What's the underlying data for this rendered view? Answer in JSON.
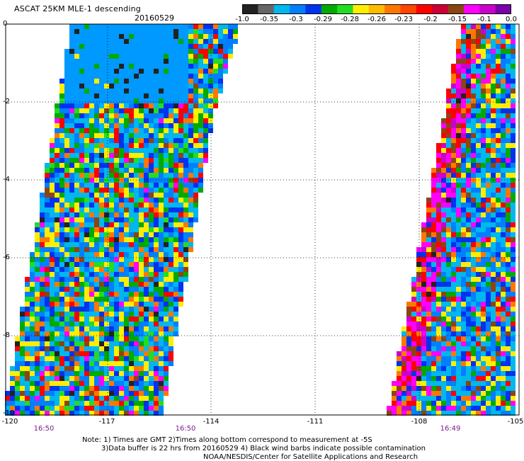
{
  "header": {
    "title": "ASCAT 25KM MLE-1 descending",
    "date": "20160529"
  },
  "colorbar": {
    "labels": [
      "-1.0",
      "-0.35",
      "-0.3",
      "-0.29",
      "-0.28",
      "-0.26",
      "-0.23",
      "-0.2",
      "-0.15",
      "-0.1",
      "0.0"
    ],
    "colors": [
      "#222222",
      "#666666",
      "#00b7ee",
      "#0080ff",
      "#0033ee",
      "#00aa00",
      "#22dd22",
      "#ffee00",
      "#ffbb00",
      "#ff7700",
      "#ff4400",
      "#ff0000",
      "#cc0033",
      "#8b4513",
      "#ff00ff",
      "#cc00cc",
      "#7a00aa"
    ]
  },
  "axes": {
    "y_ticks": [
      "0",
      "-2",
      "-4",
      "-6",
      "-8",
      "-10"
    ],
    "x_ticks": [
      "-120",
      "-117",
      "-114",
      "-111",
      "-108",
      "-105"
    ],
    "pass_times": [
      "16:50",
      "16:50",
      "16:49"
    ]
  },
  "notes": {
    "line1": "Note: 1) Times are GMT 2)Times along bottom correspond to measurement at -5S",
    "line2": "3)Data buffer is 22 hrs from 20160529 4) Black wind barbs indicate possible contamination",
    "line3": "NOAA/NESDIS/Center for Satellite Applications and Research"
  },
  "map_data": {
    "type": "heatmap",
    "lon_range": [
      -120,
      -105
    ],
    "lat_range": [
      -10,
      0
    ]
  }
}
